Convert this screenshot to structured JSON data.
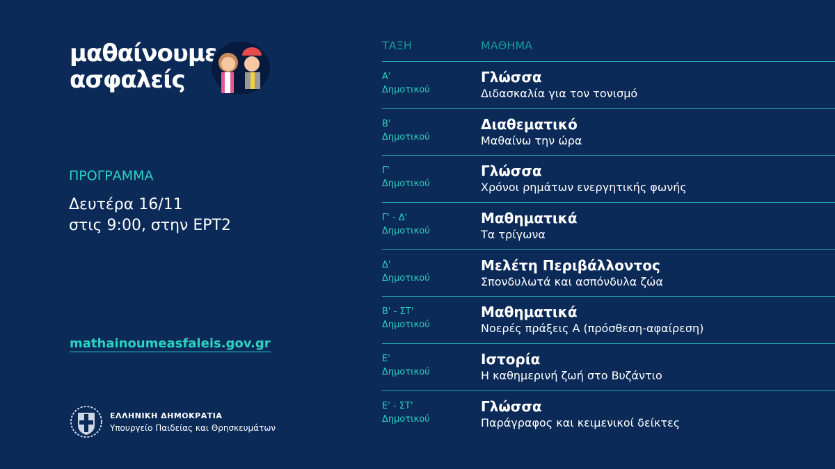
{
  "logo": {
    "line1": "μαθαίνουμε",
    "line2": "ασφαλείς"
  },
  "program": {
    "label": "ΠΡΟΓΡΑΜΜΑ",
    "date": "Δευτέρα 16/11",
    "time": "στις 9:00, στην ΕΡΤ2"
  },
  "website": "mathainoumeasfaleis.gov.gr",
  "government": {
    "line1": "ΕΛΛΗΝΙΚΗ ΔΗΜΟΚΡΑΤΙΑ",
    "line2": "Υπουργείο Παιδείας και Θρησκευμάτων"
  },
  "colors": {
    "background": "#0b2a58",
    "accent": "#2cd1c0"
  },
  "table": {
    "headers": [
      "ΤΑΞΗ",
      "ΜΑΘΗΜΑ"
    ],
    "rows": [
      {
        "grade": "Α'",
        "level": "Δημοτικού",
        "subject": "Γλώσσα",
        "topic": "Διδασκαλία για τον τονισμό"
      },
      {
        "grade": "Β'",
        "level": "Δημοτικού",
        "subject": "Διαθεματικό",
        "topic": "Μαθαίνω την ώρα"
      },
      {
        "grade": "Γ'",
        "level": "Δημοτικού",
        "subject": "Γλώσσα",
        "topic": "Χρόνοι ρημάτων ενεργητικής φωνής"
      },
      {
        "grade": "Γ' - Δ'",
        "level": "Δημοτικού",
        "subject": "Μαθηματικά",
        "topic": "Τα τρίγωνα"
      },
      {
        "grade": "Δ'",
        "level": "Δημοτικού",
        "subject": "Μελέτη Περιβάλλοντος",
        "topic": "Σπονδυλωτά και ασπόνδυλα ζώα"
      },
      {
        "grade": "Β' - ΣΤ'",
        "level": "Δημοτικού",
        "subject": "Μαθηματικά",
        "topic": "Νοερές πράξεις Α (πρόσθεση-αφαίρεση)"
      },
      {
        "grade": "Ε'",
        "level": "Δημοτικού",
        "subject": "Ιστορία",
        "topic": "Η καθημερινή ζωή στο Βυζάντιο"
      },
      {
        "grade": "Ε' - ΣΤ'",
        "level": "Δημοτικού",
        "subject": "Γλώσσα",
        "topic": "Παράγραφος και κειμενικοί δείκτες"
      }
    ]
  }
}
